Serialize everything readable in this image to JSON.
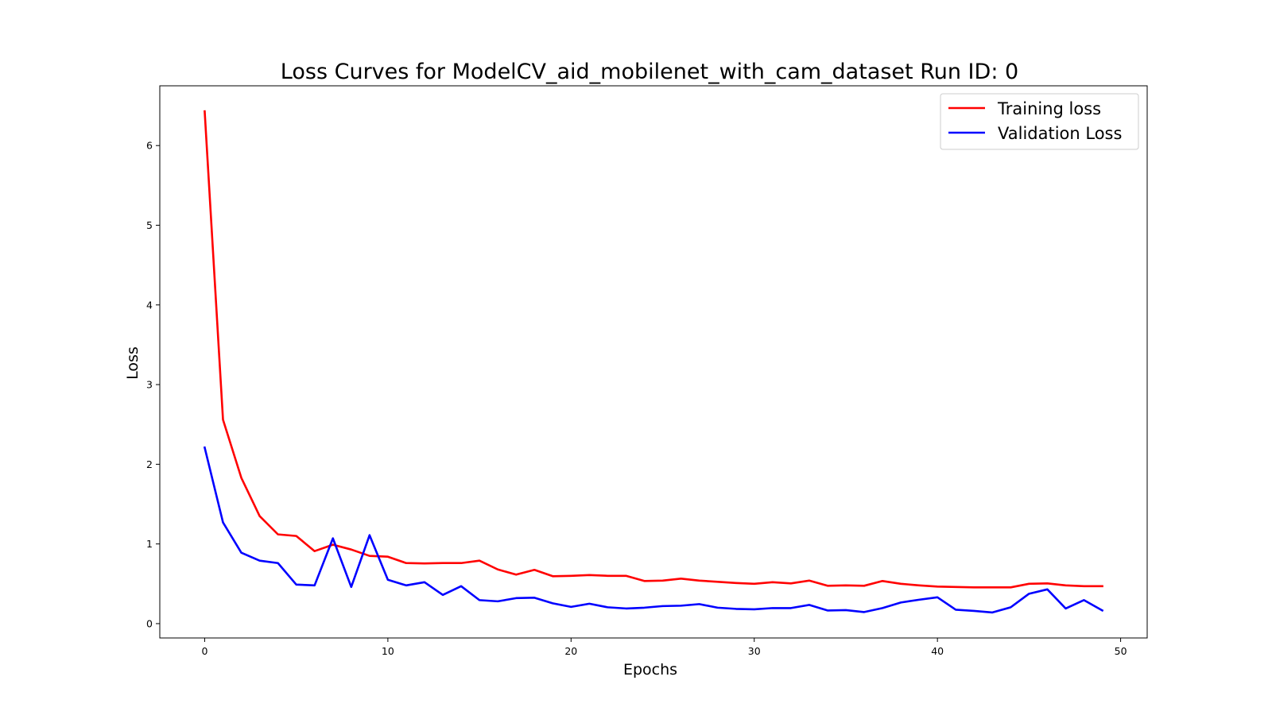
{
  "chart_data": {
    "type": "line",
    "title": "Loss Curves for ModelCV_aid_mobilenet_with_cam_dataset Run ID: 0",
    "xlabel": "Epochs",
    "ylabel": "Loss",
    "xlim": [
      -2.45,
      51.45
    ],
    "ylim": [
      -0.18,
      6.75
    ],
    "x_ticks": [
      0,
      10,
      20,
      30,
      40,
      50
    ],
    "y_ticks": [
      0,
      1,
      2,
      3,
      4,
      5,
      6
    ],
    "grid": false,
    "legend_position": "top-right",
    "x": [
      0,
      1,
      2,
      3,
      4,
      5,
      6,
      7,
      8,
      9,
      10,
      11,
      12,
      13,
      14,
      15,
      16,
      17,
      18,
      19,
      20,
      21,
      22,
      23,
      24,
      25,
      26,
      27,
      28,
      29,
      30,
      31,
      32,
      33,
      34,
      35,
      36,
      37,
      38,
      39,
      40,
      41,
      42,
      43,
      44,
      45,
      46,
      47,
      48,
      49
    ],
    "series": [
      {
        "name": "Training loss",
        "color": "#ff0000",
        "values": [
          6.43,
          2.56,
          1.83,
          1.35,
          1.12,
          1.1,
          0.91,
          0.99,
          0.93,
          0.85,
          0.84,
          0.76,
          0.755,
          0.76,
          0.76,
          0.79,
          0.68,
          0.615,
          0.675,
          0.595,
          0.6,
          0.61,
          0.6,
          0.6,
          0.535,
          0.54,
          0.565,
          0.54,
          0.525,
          0.51,
          0.5,
          0.52,
          0.505,
          0.54,
          0.475,
          0.48,
          0.475,
          0.535,
          0.5,
          0.48,
          0.465,
          0.46,
          0.455,
          0.455,
          0.455,
          0.5,
          0.505,
          0.48,
          0.47,
          0.47
        ]
      },
      {
        "name": "Validation Loss",
        "color": "#0000ff",
        "values": [
          2.21,
          1.27,
          0.89,
          0.79,
          0.76,
          0.49,
          0.48,
          1.07,
          0.46,
          1.11,
          0.55,
          0.48,
          0.52,
          0.36,
          0.47,
          0.295,
          0.28,
          0.32,
          0.325,
          0.255,
          0.21,
          0.25,
          0.205,
          0.19,
          0.2,
          0.22,
          0.225,
          0.245,
          0.2,
          0.185,
          0.18,
          0.195,
          0.195,
          0.235,
          0.165,
          0.17,
          0.145,
          0.195,
          0.265,
          0.3,
          0.33,
          0.175,
          0.16,
          0.14,
          0.205,
          0.375,
          0.43,
          0.19,
          0.295,
          0.165
        ]
      }
    ]
  }
}
